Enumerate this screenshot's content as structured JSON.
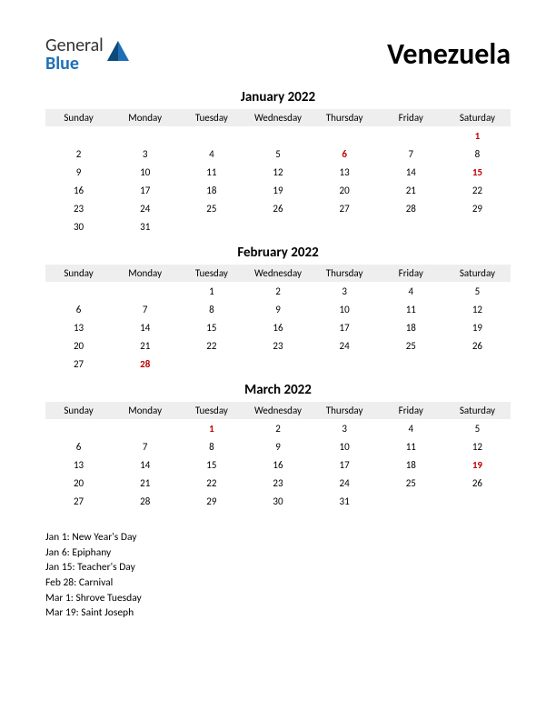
{
  "logo": {
    "part1": "General",
    "part2": "Blue"
  },
  "country": "Venezuela",
  "weekdays": [
    "Sunday",
    "Monday",
    "Tuesday",
    "Wednesday",
    "Thursday",
    "Friday",
    "Saturday"
  ],
  "months": [
    {
      "title": "January 2022",
      "startDay": 6,
      "numDays": 31,
      "holidays": [
        1,
        6,
        15
      ]
    },
    {
      "title": "February 2022",
      "startDay": 2,
      "numDays": 28,
      "holidays": [
        28
      ]
    },
    {
      "title": "March 2022",
      "startDay": 2,
      "numDays": 31,
      "holidays": [
        1,
        19
      ]
    }
  ],
  "holidayList": [
    "Jan 1: New Year's Day",
    "Jan 6: Epiphany",
    "Jan 15: Teacher's Day",
    "Feb 28: Carnival",
    "Mar 1: Shrove Tuesday",
    "Mar 19: Saint Joseph"
  ],
  "styles": {
    "holiday_color": "#c00000",
    "header_bg": "#eeeeee",
    "background": "#ffffff",
    "text_color": "#000000",
    "logo_blue": "#1e6fb8"
  }
}
